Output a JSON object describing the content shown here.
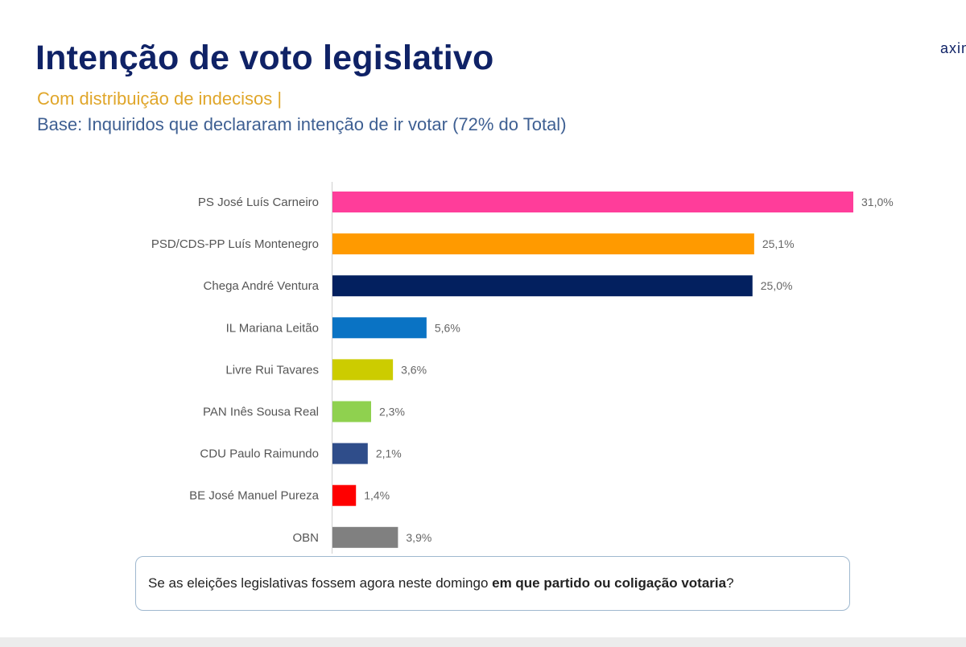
{
  "header": {
    "title": "Intenção de voto legislativo",
    "subtitle": "Com distribuição de indecisos |",
    "base": "Base: Inquiridos que declararam intenção de ir votar (72% do Total)",
    "logo": "axim"
  },
  "question": {
    "prefix": "Se as eleições legislativas fossem agora neste domingo ",
    "emphasis": "em que partido ou coligação votaria",
    "suffix": "?"
  },
  "chart_data": {
    "type": "bar",
    "orientation": "horizontal",
    "categories": [
      "PS José Luís Carneiro",
      "PSD/CDS-PP Luís Montenegro",
      "Chega André Ventura",
      "IL Mariana Leitão",
      "Livre Rui Tavares",
      "PAN Inês Sousa Real",
      "CDU Paulo Raimundo",
      "BE José Manuel Pureza",
      "OBN"
    ],
    "values": [
      31.0,
      25.1,
      25.0,
      5.6,
      3.6,
      2.3,
      2.1,
      1.4,
      3.9
    ],
    "value_labels": [
      "31,0%",
      "25,1%",
      "25,0%",
      "5,6%",
      "3,6%",
      "2,3%",
      "2,1%",
      "1,4%",
      "3,9%"
    ],
    "colors": [
      "#ff3d9a",
      "#ff9a00",
      "#03205f",
      "#0a73c4",
      "#cccc00",
      "#8fd14f",
      "#2f4d8a",
      "#ff0000",
      "#808080"
    ],
    "xlim": [
      0,
      31.0
    ],
    "grid": false,
    "legend": "none"
  }
}
